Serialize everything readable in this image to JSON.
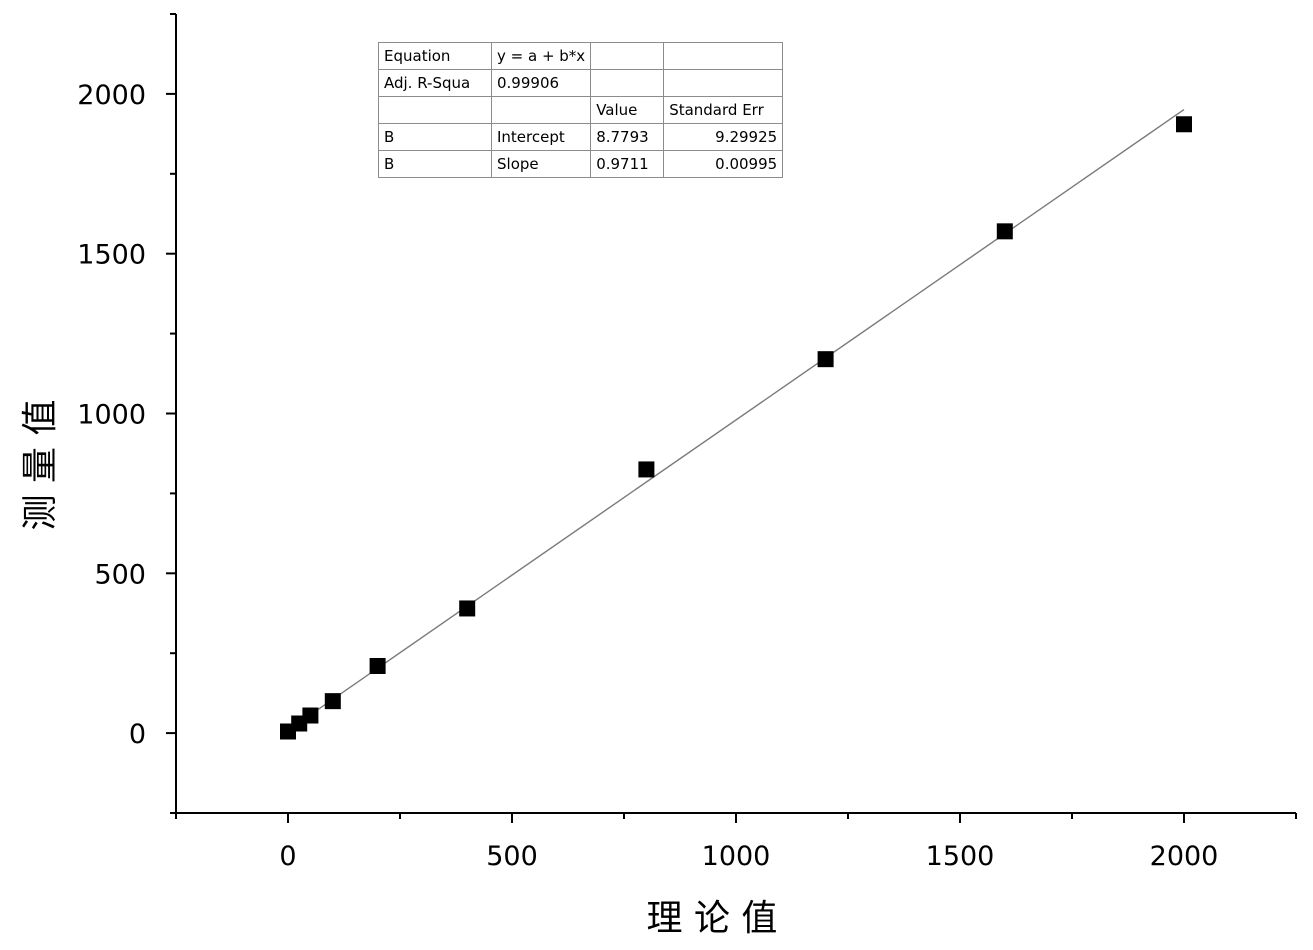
{
  "chart_data": {
    "type": "scatter",
    "title": "",
    "xlabel": "理 论 值",
    "ylabel": "测 量 值",
    "xlim": [
      -250,
      2250
    ],
    "ylim": [
      -250,
      2250
    ],
    "x_ticks": [
      0,
      500,
      1000,
      1500,
      2000
    ],
    "y_ticks": [
      0,
      500,
      1000,
      1500,
      2000
    ],
    "x_tick_labels": [
      "0",
      "500",
      "1000",
      "1500",
      "2000"
    ],
    "y_tick_labels": [
      "0",
      "500",
      "1000",
      "1500",
      "2000"
    ],
    "x_minor_ticks": [
      -250,
      250,
      750,
      1250,
      1750,
      2250
    ],
    "y_minor_ticks": [
      -250,
      250,
      750,
      1250,
      1750,
      2250
    ],
    "grid": false,
    "series": [
      {
        "marker": "square",
        "color": "#000000",
        "points": [
          {
            "x": 0,
            "y": 5
          },
          {
            "x": 25,
            "y": 30
          },
          {
            "x": 50,
            "y": 55
          },
          {
            "x": 100,
            "y": 100
          },
          {
            "x": 200,
            "y": 210
          },
          {
            "x": 400,
            "y": 390
          },
          {
            "x": 800,
            "y": 825
          },
          {
            "x": 1200,
            "y": 1170
          },
          {
            "x": 1600,
            "y": 1570
          },
          {
            "x": 2000,
            "y": 1905
          }
        ]
      }
    ],
    "fit": {
      "type": "linear",
      "intercept": 8.7793,
      "slope": 0.9711,
      "x_range": [
        0,
        2000
      ],
      "color": "#7a7a7a"
    },
    "stats_table": [
      [
        "Equation",
        "y = a + b*x",
        "",
        ""
      ],
      [
        "Adj. R-Squa",
        "0.99906",
        "",
        ""
      ],
      [
        "",
        "",
        "Value",
        "Standard Err"
      ],
      [
        "B",
        "Intercept",
        "8.7793",
        "9.29925"
      ],
      [
        "B",
        "Slope",
        "0.9711",
        "0.00995"
      ]
    ]
  }
}
